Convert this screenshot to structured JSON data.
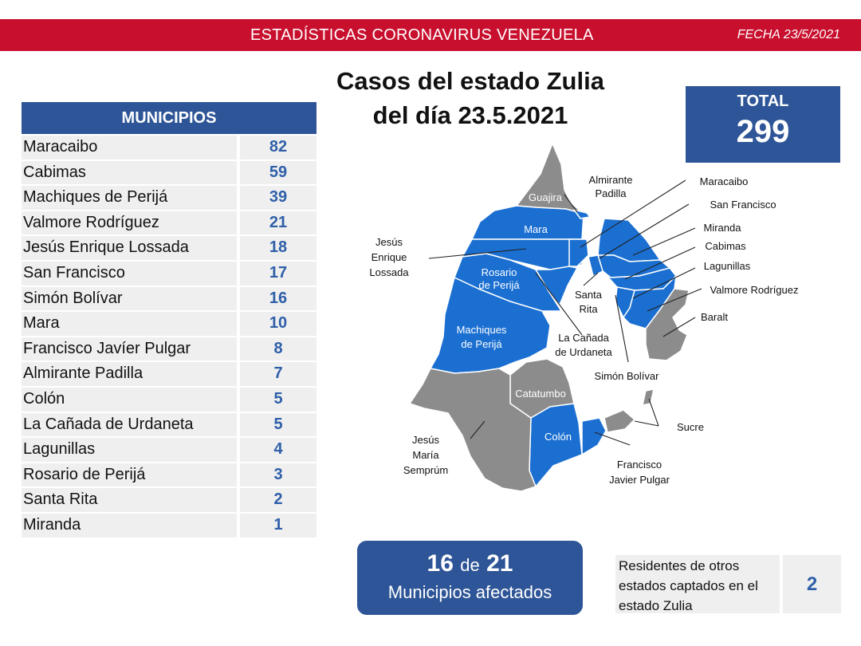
{
  "header": {
    "title": "ESTADÍSTICAS CORONAVIRUS VENEZUELA",
    "date": "FECHA 23/5/2021"
  },
  "main_title": {
    "line1": "Casos del estado Zulia",
    "line2": "del día 23.5.2021"
  },
  "total": {
    "label": "TOTAL",
    "value": "299"
  },
  "table": {
    "header": "MUNICIPIOS",
    "rows": [
      {
        "name": "Maracaibo",
        "value": "82"
      },
      {
        "name": "Cabimas",
        "value": "59"
      },
      {
        "name": "Machiques de Perijá",
        "value": "39"
      },
      {
        "name": "Valmore Rodríguez",
        "value": "21"
      },
      {
        "name": "Jesús Enrique Lossada",
        "value": "18"
      },
      {
        "name": "San Francisco",
        "value": "17"
      },
      {
        "name": "Simón Bolívar",
        "value": "16"
      },
      {
        "name": "Mara",
        "value": "10"
      },
      {
        "name": "Francisco Javíer Pulgar",
        "value": "8"
      },
      {
        "name": "Almirante Padilla",
        "value": "7"
      },
      {
        "name": "Colón",
        "value": "5"
      },
      {
        "name": "La Cañada de Urdaneta",
        "value": "5"
      },
      {
        "name": "Lagunillas",
        "value": "4"
      },
      {
        "name": "Rosario de Perijá",
        "value": "3"
      },
      {
        "name": "Santa Rita",
        "value": "2"
      },
      {
        "name": "Miranda",
        "value": "1"
      }
    ]
  },
  "map_labels": {
    "guajira": "Guajira",
    "mara": "Mara",
    "rosario_1": "Rosario",
    "rosario_2": "de Perijá",
    "machiques_1": "Machiques",
    "machiques_2": "de Perijá",
    "catatumbo": "Catatumbo",
    "colon": "Colón",
    "almirante_1": "Almirante",
    "almirante_2": "Padilla",
    "maracaibo": "Maracaibo",
    "san_francisco": "San Francisco",
    "miranda": "Miranda",
    "cabimas": "Cabimas",
    "lagunillas": "Lagunillas",
    "valmore": "Valmore Rodríguez",
    "baralt": "Baralt",
    "jel_1": "Jesús",
    "jel_2": "Enrique",
    "jel_3": "Lossada",
    "santa_rita_1": "Santa",
    "santa_rita_2": "Rita",
    "canada_1": "La Cañada",
    "canada_2": "de Urdaneta",
    "simon_bolivar": "Simón Bolívar",
    "sucre": "Sucre",
    "jms_1": "Jesús",
    "jms_2": "María",
    "jms_3": "Semprúm",
    "fjp_1": "Francisco",
    "fjp_2": "Javier Pulgar"
  },
  "affected": {
    "count": "16",
    "of": "de",
    "total": "21",
    "label": "Municipios afectados"
  },
  "residents": {
    "text": "Residentes de otros estados captados en el estado Zulia",
    "value": "2"
  },
  "colors": {
    "brand_red": "#c8102e",
    "navy": "#2e5597",
    "affected_blue": "#1a6fd1",
    "unaffected_gray": "#8c8c8c",
    "number_blue": "#2e5fa8"
  }
}
